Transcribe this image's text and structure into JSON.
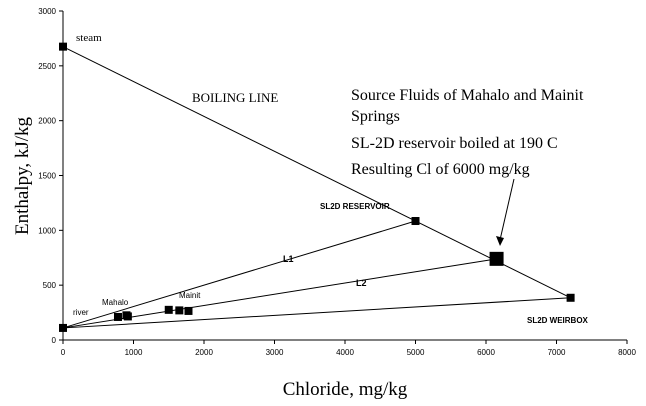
{
  "chart_data": {
    "type": "scatter",
    "title": "",
    "xlabel": "Chloride, mg/kg",
    "ylabel": "Enthalpy, kJ/kg",
    "xlim": [
      0,
      8000
    ],
    "ylim": [
      0,
      3000
    ],
    "x_ticks": [
      0,
      1000,
      2000,
      3000,
      4000,
      5000,
      6000,
      7000,
      8000
    ],
    "y_ticks": [
      0,
      500,
      1000,
      1500,
      2000,
      2500,
      3000
    ],
    "grid": false,
    "points": [
      {
        "x": 0,
        "y": 2675,
        "label": "steam"
      },
      {
        "x": 0,
        "y": 110,
        "label": "river"
      },
      {
        "x": 5000,
        "y": 1085,
        "label": "SL2D RESERVOIR"
      },
      {
        "x": 7200,
        "y": 385,
        "label": "SL2D WEIRBOX"
      },
      {
        "x": 6150,
        "y": 740,
        "big": true
      },
      {
        "x": 780,
        "y": 210
      },
      {
        "x": 900,
        "y": 225
      },
      {
        "x": 920,
        "y": 215
      },
      {
        "x": 1500,
        "y": 275
      },
      {
        "x": 1650,
        "y": 270
      },
      {
        "x": 1780,
        "y": 265
      }
    ],
    "lines": [
      {
        "from": [
          0,
          2675
        ],
        "to": [
          7200,
          385
        ],
        "label": "BOILING LINE"
      },
      {
        "from": [
          0,
          110
        ],
        "to": [
          5000,
          1085
        ],
        "label": "L1"
      },
      {
        "from": [
          0,
          110
        ],
        "to": [
          6150,
          740
        ],
        "label": "L2"
      },
      {
        "from": [
          0,
          110
        ],
        "to": [
          7200,
          385
        ]
      }
    ],
    "annotations": {
      "steam": "steam",
      "boiling_line": "BOILING LINE",
      "source_1": "Source Fluids of Mahalo and Mainit",
      "source_2": "Springs",
      "reservoir_boiled": "SL-2D reservoir boiled at 190 C",
      "resulting_cl": "Resulting Cl of 6000 mg/kg",
      "sl2d_reservoir": "SL2D RESERVOIR",
      "l1": "L1",
      "l2": "L2",
      "mahalo": "Mahalo",
      "mainit": "Mainit",
      "river": "river",
      "sl2d_weirbox": "SL2D WEIRBOX"
    }
  }
}
